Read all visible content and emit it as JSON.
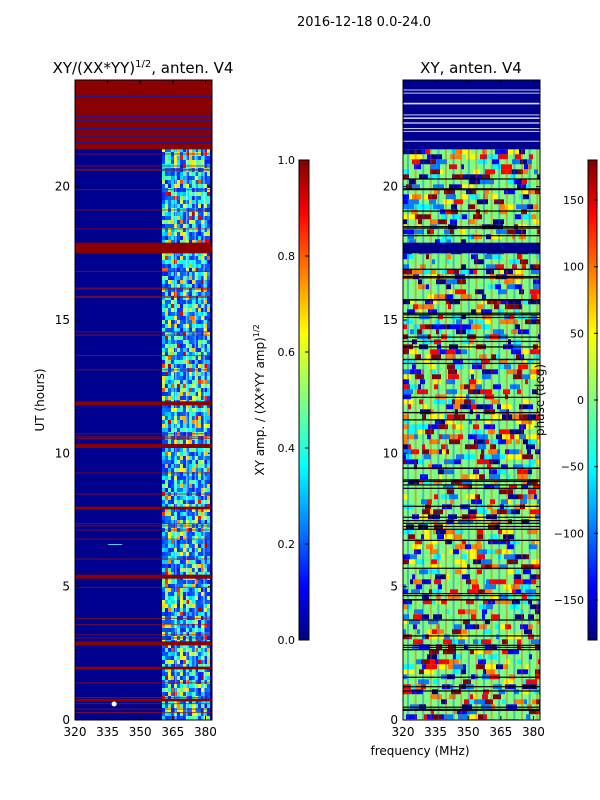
{
  "suptitle": "2016-12-18 0.0-24.0",
  "shared_xlabel": "frequency (MHz)",
  "chart_data": [
    {
      "type": "heatmap",
      "title_main": "XY/(XX*YY)",
      "title_sup": "1/2",
      "title_rest": ", anten. V4",
      "xlabel": "",
      "ylabel": "UT (hours)",
      "xlim": [
        320,
        383
      ],
      "ylim": [
        0,
        24
      ],
      "xticks": [
        320,
        335,
        350,
        365,
        380
      ],
      "yticks": [
        0,
        5,
        10,
        15,
        20
      ],
      "colormap": "jet",
      "colorbar": {
        "label_main": "XY amp. / (XX*YY amp)",
        "label_sup": "1/2",
        "range": [
          0.0,
          1.0
        ],
        "ticks": [
          "0.0",
          "0.2",
          "0.4",
          "0.6",
          "0.8",
          "1.0"
        ]
      },
      "band_hours": [
        [
          21.4,
          24.0
        ],
        [
          17.5,
          17.9
        ],
        [
          11.8,
          11.95
        ],
        [
          10.2,
          10.35
        ],
        [
          7.9,
          8.0
        ],
        [
          5.3,
          5.45
        ],
        [
          2.8,
          2.95
        ],
        [
          1.9,
          2.0
        ],
        [
          0.7,
          0.8
        ]
      ],
      "active_freq_range": [
        360,
        381
      ]
    },
    {
      "type": "heatmap",
      "title_main": "XY, anten. V4",
      "xlabel": "frequency (MHz)",
      "ylabel": "",
      "xlim": [
        320,
        383
      ],
      "ylim": [
        0,
        24
      ],
      "xticks": [
        320,
        335,
        350,
        365,
        380
      ],
      "yticks": [
        0,
        5,
        10,
        15,
        20
      ],
      "colormap": "jet",
      "colorbar": {
        "label_main": "phase (deg)",
        "range": [
          -180,
          180
        ],
        "ticks": [
          "150",
          "100",
          "50",
          "0",
          "-50",
          "-100",
          "-150"
        ]
      },
      "band_hours": [
        [
          21.4,
          24.0
        ],
        [
          17.5,
          17.9
        ]
      ],
      "active_freq_range": [
        320,
        383
      ]
    }
  ]
}
